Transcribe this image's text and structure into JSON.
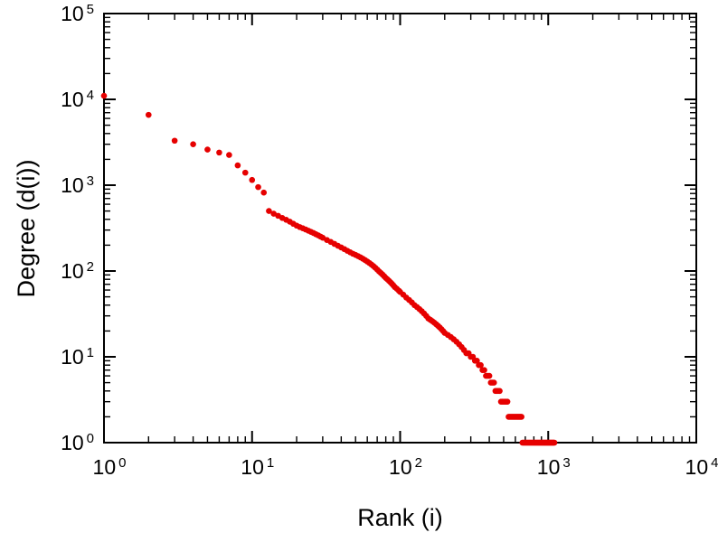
{
  "chart_data": {
    "type": "scatter",
    "title": "",
    "xlabel": "Rank (i)",
    "ylabel": "Degree (d(i))",
    "x_scale": "log",
    "y_scale": "log",
    "xlim": [
      1,
      10000
    ],
    "ylim": [
      1,
      100000
    ],
    "x_tick_exponents": [
      0,
      1,
      2,
      3,
      4
    ],
    "y_tick_exponents": [
      0,
      1,
      2,
      3,
      4,
      5
    ],
    "grid": false,
    "legend": "none",
    "point_color": "#e60000",
    "point_radius": 3.3,
    "points": [
      [
        1,
        11000
      ],
      [
        2,
        6600
      ],
      [
        3,
        3300
      ],
      [
        4,
        3000
      ],
      [
        5,
        2600
      ],
      [
        6,
        2400
      ],
      [
        7,
        2250
      ],
      [
        8,
        1700
      ],
      [
        9,
        1400
      ],
      [
        10,
        1150
      ],
      [
        11,
        950
      ],
      [
        12,
        820
      ],
      [
        13,
        500
      ],
      [
        14,
        465
      ],
      [
        15,
        440
      ],
      [
        16,
        415
      ],
      [
        17,
        395
      ],
      [
        18,
        375
      ],
      [
        19,
        355
      ],
      [
        20,
        338
      ],
      [
        21,
        325
      ],
      [
        22,
        315
      ],
      [
        23,
        305
      ],
      [
        24,
        295
      ],
      [
        25,
        286
      ],
      [
        26,
        277
      ],
      [
        27,
        268
      ],
      [
        28,
        260
      ],
      [
        29,
        252
      ],
      [
        30,
        244
      ],
      [
        32,
        230
      ],
      [
        34,
        218
      ],
      [
        36,
        207
      ],
      [
        38,
        197
      ],
      [
        40,
        188
      ],
      [
        42,
        180
      ],
      [
        44,
        172
      ],
      [
        46,
        165
      ],
      [
        48,
        159
      ],
      [
        50,
        154
      ],
      [
        52,
        149
      ],
      [
        54,
        144
      ],
      [
        56,
        139
      ],
      [
        58,
        134
      ],
      [
        60,
        129
      ],
      [
        62,
        124
      ],
      [
        64,
        119
      ],
      [
        66,
        114
      ],
      [
        68,
        109
      ],
      [
        70,
        104
      ],
      [
        72,
        99
      ],
      [
        74,
        95
      ],
      [
        76,
        91
      ],
      [
        78,
        87
      ],
      [
        80,
        83
      ],
      [
        82,
        80
      ],
      [
        84,
        77
      ],
      [
        86,
        74
      ],
      [
        88,
        71
      ],
      [
        90,
        68
      ],
      [
        92,
        65
      ],
      [
        95,
        62
      ],
      [
        98,
        59
      ],
      [
        100,
        57
      ],
      [
        105,
        53
      ],
      [
        110,
        49
      ],
      [
        115,
        46
      ],
      [
        120,
        43
      ],
      [
        125,
        40
      ],
      [
        130,
        38
      ],
      [
        135,
        36
      ],
      [
        140,
        34
      ],
      [
        145,
        32
      ],
      [
        150,
        30
      ],
      [
        155,
        28
      ],
      [
        160,
        27
      ],
      [
        165,
        26
      ],
      [
        170,
        25
      ],
      [
        175,
        24
      ],
      [
        180,
        23
      ],
      [
        185,
        22
      ],
      [
        190,
        21
      ],
      [
        195,
        20
      ],
      [
        200,
        19
      ],
      [
        210,
        18
      ],
      [
        220,
        17
      ],
      [
        230,
        16
      ],
      [
        240,
        15
      ],
      [
        250,
        14
      ],
      [
        260,
        13
      ],
      [
        270,
        12
      ],
      [
        280,
        11
      ],
      [
        290,
        11
      ],
      [
        300,
        10
      ],
      [
        310,
        10
      ],
      [
        320,
        9
      ],
      [
        330,
        9
      ],
      [
        340,
        8
      ],
      [
        350,
        8
      ],
      [
        360,
        7
      ],
      [
        370,
        7
      ],
      [
        380,
        6
      ],
      [
        390,
        6
      ],
      [
        400,
        6
      ],
      [
        410,
        5
      ],
      [
        420,
        5
      ],
      [
        430,
        5
      ],
      [
        440,
        4
      ],
      [
        450,
        4
      ],
      [
        460,
        4
      ],
      [
        470,
        4
      ],
      [
        480,
        3
      ],
      [
        490,
        3
      ],
      [
        500,
        3
      ],
      [
        510,
        3
      ],
      [
        520,
        3
      ],
      [
        530,
        3
      ],
      [
        540,
        2
      ],
      [
        550,
        2
      ],
      [
        560,
        2
      ],
      [
        570,
        2
      ],
      [
        580,
        2
      ],
      [
        590,
        2
      ],
      [
        600,
        2
      ],
      [
        610,
        2
      ],
      [
        620,
        2
      ],
      [
        630,
        2
      ],
      [
        640,
        2
      ],
      [
        650,
        2
      ],
      [
        660,
        2
      ],
      [
        670,
        1
      ],
      [
        680,
        1
      ],
      [
        690,
        1
      ],
      [
        700,
        1
      ],
      [
        710,
        1
      ],
      [
        720,
        1
      ],
      [
        730,
        1
      ],
      [
        740,
        1
      ],
      [
        750,
        1
      ],
      [
        760,
        1
      ],
      [
        770,
        1
      ],
      [
        780,
        1
      ],
      [
        790,
        1
      ],
      [
        800,
        1
      ],
      [
        810,
        1
      ],
      [
        820,
        1
      ],
      [
        830,
        1
      ],
      [
        840,
        1
      ],
      [
        850,
        1
      ],
      [
        860,
        1
      ],
      [
        870,
        1
      ],
      [
        880,
        1
      ],
      [
        890,
        1
      ],
      [
        900,
        1
      ],
      [
        910,
        1
      ],
      [
        920,
        1
      ],
      [
        930,
        1
      ],
      [
        940,
        1
      ],
      [
        950,
        1
      ],
      [
        960,
        1
      ],
      [
        970,
        1
      ],
      [
        980,
        1
      ],
      [
        990,
        1
      ],
      [
        1000,
        1
      ],
      [
        1010,
        1
      ],
      [
        1020,
        1
      ],
      [
        1030,
        1
      ],
      [
        1040,
        1
      ],
      [
        1050,
        1
      ],
      [
        1060,
        1
      ],
      [
        1070,
        1
      ],
      [
        1080,
        1
      ],
      [
        1090,
        1
      ],
      [
        1100,
        1
      ]
    ]
  }
}
